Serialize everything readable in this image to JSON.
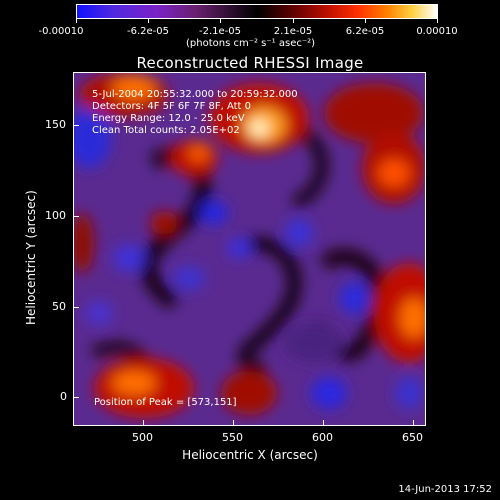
{
  "colorbar": {
    "tick_labels": [
      "-0.00010",
      "-6.2e-05",
      "-2.1e-05",
      "2.1e-05",
      "6.2e-05",
      "0.00010"
    ],
    "units": "(photons cm⁻² s⁻¹ asec⁻²)"
  },
  "plot": {
    "title": "Reconstructed RHESSI Image",
    "xlabel": "Heliocentric X (arcsec)",
    "ylabel": "Heliocentric Y (arcsec)",
    "x_ticks": [
      "500",
      "550",
      "600",
      "650"
    ],
    "y_ticks": [
      "0",
      "50",
      "100",
      "150"
    ],
    "info_lines": [
      "5-Jul-2004 20:55:32.000 to 20:59:32.000",
      "Detectors: 4F 5F 6F 7F 8F, Att 0",
      "Energy Range: 12.0 - 25.0 keV",
      "Clean    Total counts: 2.05E+02"
    ],
    "peak_text": "Position of Peak = [573,151]"
  },
  "timestamp": "14-Jun-2013 17:52",
  "colors": {
    "background": "#000000",
    "foreground": "#ffffff"
  }
}
